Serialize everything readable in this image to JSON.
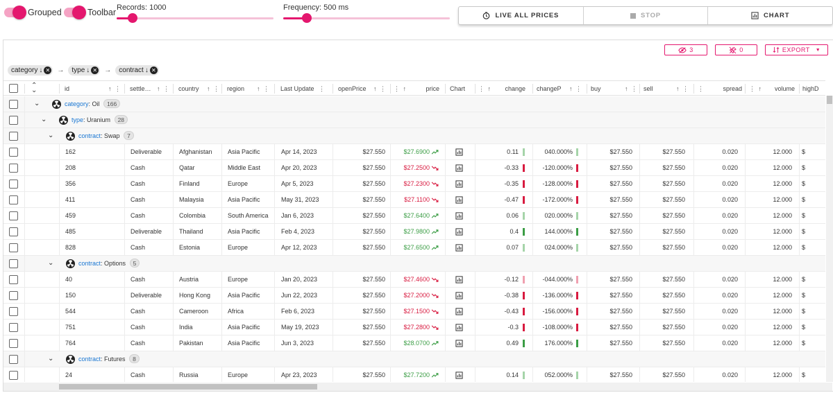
{
  "toggles": [
    {
      "label": "Grouped"
    },
    {
      "label": "Toolbar"
    }
  ],
  "sliders": {
    "records": {
      "label": "Records: 1000",
      "fraction": 0.1
    },
    "frequency": {
      "label": "Frequency: 500 ms",
      "fraction": 0.14
    }
  },
  "actions": {
    "live": "LIVE ALL PRICES",
    "stop": "STOP",
    "chart": "CHART"
  },
  "grid_toolbar": {
    "hidden_count": "3",
    "pinned_count": "0",
    "export_label": "EXPORT"
  },
  "grouping": {
    "chips": [
      "category",
      "type",
      "contract"
    ]
  },
  "columns": [
    "id",
    "settle…",
    "country",
    "region",
    "Last Update",
    "openPrice",
    "price",
    "Chart",
    "change",
    "changeP",
    "buy",
    "sell",
    "spread",
    "volume",
    "highD"
  ],
  "groups": {
    "category": {
      "key": "category",
      "value": "Oil",
      "count": "166"
    },
    "type": {
      "key": "type",
      "value": "Uranium",
      "count": "28"
    },
    "contracts": [
      {
        "key": "contract",
        "value": "Swap",
        "count": "7"
      },
      {
        "key": "contract",
        "value": "Options",
        "count": "5"
      },
      {
        "key": "contract",
        "value": "Futures",
        "count": "8"
      }
    ]
  },
  "rows": [
    {
      "id": "162",
      "settlement": "Deliverable",
      "country": "Afghanistan",
      "region": "Asia Pacific",
      "lastUpdate": "Apr 14, 2023",
      "openPrice": "$27.550",
      "price": "$27.6900",
      "trend": "up",
      "change": "0.11",
      "changeP": "040.000%",
      "buy": "$27.550",
      "sell": "$27.550",
      "spread": "0.020",
      "volume": "12.000",
      "highD": "$"
    },
    {
      "id": "208",
      "settlement": "Cash",
      "country": "Qatar",
      "region": "Middle East",
      "lastUpdate": "Apr 20, 2023",
      "openPrice": "$27.550",
      "price": "$27.2500",
      "trend": "down",
      "change": "-0.33",
      "changeP": "-120.000%",
      "buy": "$27.550",
      "sell": "$27.550",
      "spread": "0.020",
      "volume": "12.000",
      "highD": "$"
    },
    {
      "id": "356",
      "settlement": "Cash",
      "country": "Finland",
      "region": "Europe",
      "lastUpdate": "Apr 5, 2023",
      "openPrice": "$27.550",
      "price": "$27.2300",
      "trend": "down",
      "change": "-0.35",
      "changeP": "-128.000%",
      "buy": "$27.550",
      "sell": "$27.550",
      "spread": "0.020",
      "volume": "12.000",
      "highD": "$"
    },
    {
      "id": "411",
      "settlement": "Cash",
      "country": "Malaysia",
      "region": "Asia Pacific",
      "lastUpdate": "May 31, 2023",
      "openPrice": "$27.550",
      "price": "$27.1100",
      "trend": "down",
      "change": "-0.47",
      "changeP": "-172.000%",
      "buy": "$27.550",
      "sell": "$27.550",
      "spread": "0.020",
      "volume": "12.000",
      "highD": "$"
    },
    {
      "id": "459",
      "settlement": "Cash",
      "country": "Colombia",
      "region": "South America",
      "lastUpdate": "Jan 6, 2023",
      "openPrice": "$27.550",
      "price": "$27.6400",
      "trend": "up",
      "change": "0.06",
      "changeP": "020.000%",
      "buy": "$27.550",
      "sell": "$27.550",
      "spread": "0.020",
      "volume": "12.000",
      "highD": "$"
    },
    {
      "id": "485",
      "settlement": "Deliverable",
      "country": "Thailand",
      "region": "Asia Pacific",
      "lastUpdate": "Feb 4, 2023",
      "openPrice": "$27.550",
      "price": "$27.9800",
      "trend": "up",
      "change": "0.4",
      "changeP": "144.000%",
      "buy": "$27.550",
      "sell": "$27.550",
      "spread": "0.020",
      "volume": "12.000",
      "highD": "$"
    },
    {
      "id": "828",
      "settlement": "Cash",
      "country": "Estonia",
      "region": "Europe",
      "lastUpdate": "Apr 12, 2023",
      "openPrice": "$27.550",
      "price": "$27.6500",
      "trend": "up",
      "change": "0.07",
      "changeP": "024.000%",
      "buy": "$27.550",
      "sell": "$27.550",
      "spread": "0.020",
      "volume": "12.000",
      "highD": "$"
    },
    {
      "id": "40",
      "settlement": "Cash",
      "country": "Austria",
      "region": "Europe",
      "lastUpdate": "Jan 20, 2023",
      "openPrice": "$27.550",
      "price": "$27.4600",
      "trend": "down",
      "change": "-0.12",
      "changeP": "-044.000%",
      "buy": "$27.550",
      "sell": "$27.550",
      "spread": "0.020",
      "volume": "12.000",
      "highD": "$"
    },
    {
      "id": "150",
      "settlement": "Deliverable",
      "country": "Hong Kong",
      "region": "Asia Pacific",
      "lastUpdate": "Jun 22, 2023",
      "openPrice": "$27.550",
      "price": "$27.2000",
      "trend": "down",
      "change": "-0.38",
      "changeP": "-136.000%",
      "buy": "$27.550",
      "sell": "$27.550",
      "spread": "0.020",
      "volume": "12.000",
      "highD": "$"
    },
    {
      "id": "544",
      "settlement": "Cash",
      "country": "Cameroon",
      "region": "Africa",
      "lastUpdate": "Feb 6, 2023",
      "openPrice": "$27.550",
      "price": "$27.1500",
      "trend": "down",
      "change": "-0.43",
      "changeP": "-156.000%",
      "buy": "$27.550",
      "sell": "$27.550",
      "spread": "0.020",
      "volume": "12.000",
      "highD": "$"
    },
    {
      "id": "751",
      "settlement": "Cash",
      "country": "India",
      "region": "Asia Pacific",
      "lastUpdate": "May 19, 2023",
      "openPrice": "$27.550",
      "price": "$27.2800",
      "trend": "down",
      "change": "-0.3",
      "changeP": "-108.000%",
      "buy": "$27.550",
      "sell": "$27.550",
      "spread": "0.020",
      "volume": "12.000",
      "highD": "$"
    },
    {
      "id": "764",
      "settlement": "Cash",
      "country": "Pakistan",
      "region": "Asia Pacific",
      "lastUpdate": "Jun 3, 2023",
      "openPrice": "$27.550",
      "price": "$28.0700",
      "trend": "up",
      "change": "0.49",
      "changeP": "176.000%",
      "buy": "$27.550",
      "sell": "$27.550",
      "spread": "0.020",
      "volume": "12.000",
      "highD": "$"
    },
    {
      "id": "24",
      "settlement": "Cash",
      "country": "Russia",
      "region": "Europe",
      "lastUpdate": "Apr 23, 2023",
      "openPrice": "$27.550",
      "price": "$27.7200",
      "trend": "up",
      "change": "0.14",
      "changeP": "052.000%",
      "buy": "$27.550",
      "sell": "$27.550",
      "spread": "0.020",
      "volume": "12.000",
      "highD": "$"
    }
  ],
  "colors": {
    "accent": "#e4176e",
    "positive": "#3b9d45",
    "negative": "#d81b40",
    "group_key": "#1976d2"
  }
}
